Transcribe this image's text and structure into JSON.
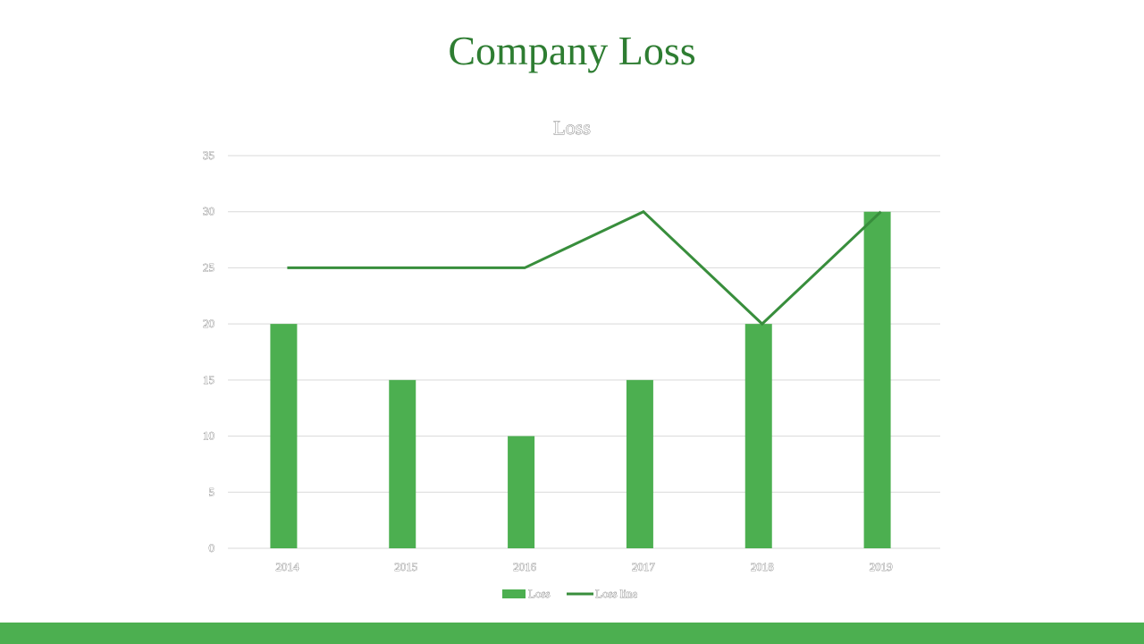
{
  "slide": {
    "title": "Company Loss",
    "accent_color": "#4caf50",
    "title_color": "#2e7d32"
  },
  "chart_data": {
    "type": "bar",
    "title": "Loss",
    "xlabel": "",
    "ylabel": "",
    "categories": [
      "2014",
      "2015",
      "2016",
      "2017",
      "2018",
      "2019"
    ],
    "ylim": [
      0,
      35
    ],
    "yticks": [
      0,
      5,
      10,
      15,
      20,
      25,
      30,
      35
    ],
    "grid": true,
    "legend_position": "bottom",
    "series": [
      {
        "name": "Loss",
        "kind": "bar",
        "color": "#4caf50",
        "values": [
          20,
          15,
          10,
          15,
          20,
          30
        ]
      },
      {
        "name": "Loss line",
        "kind": "line",
        "color": "#388e3c",
        "values": [
          25,
          25,
          25,
          30,
          20,
          30
        ]
      }
    ]
  }
}
